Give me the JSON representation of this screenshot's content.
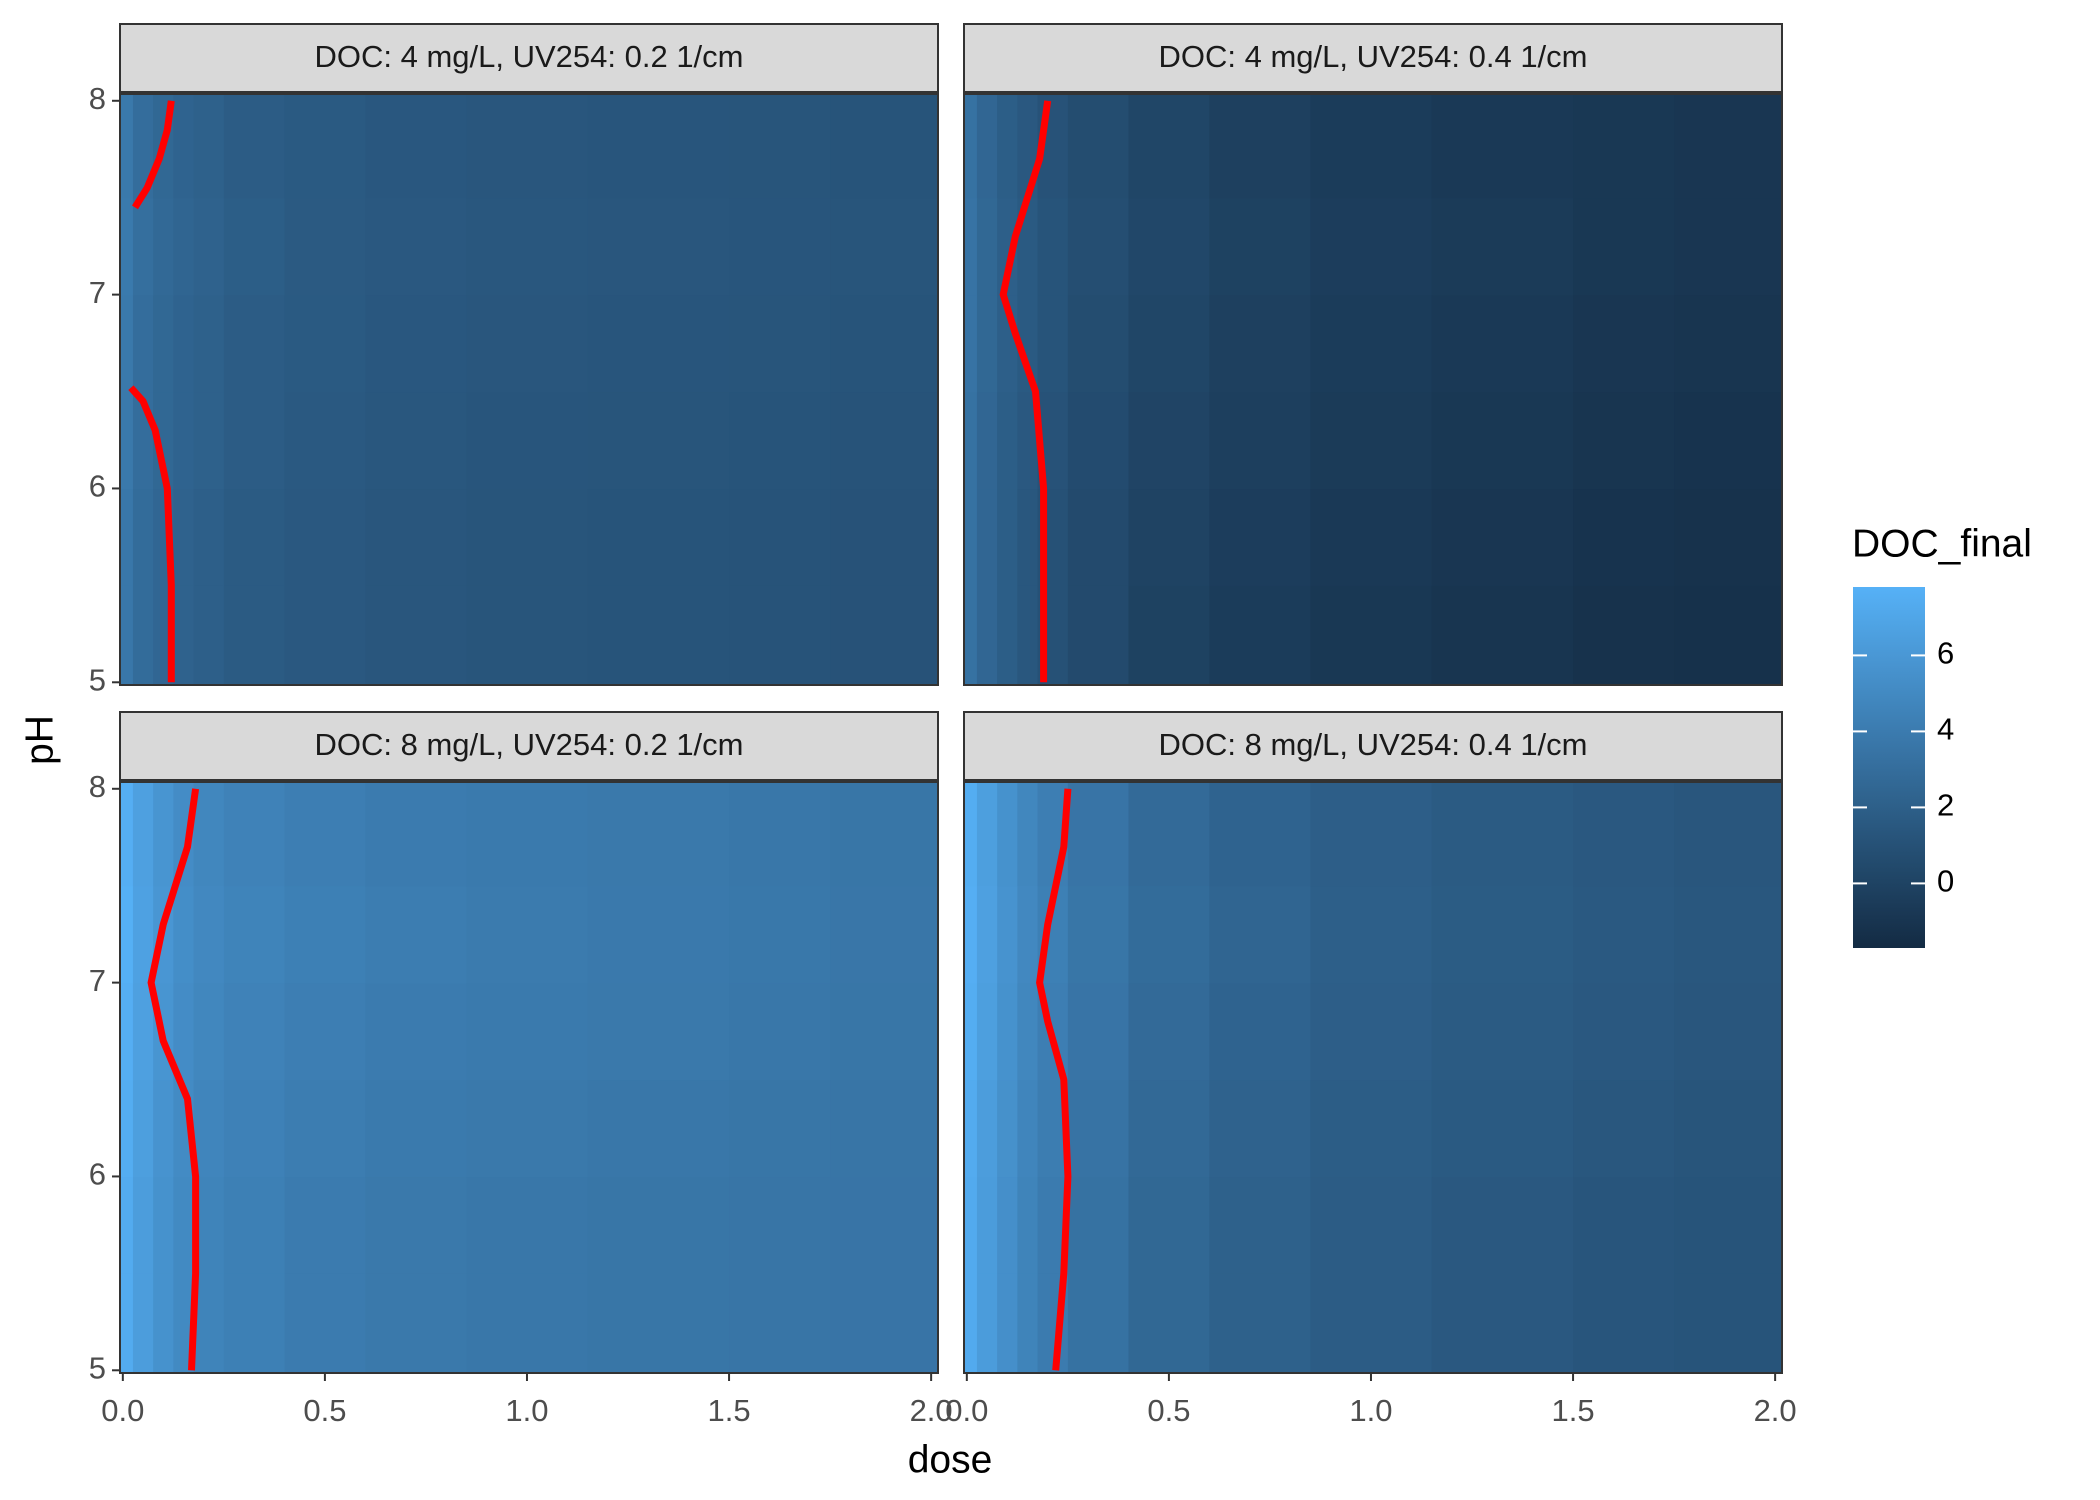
{
  "chart_data": {
    "type": "heatmap",
    "x_label": "dose",
    "y_label": "pH",
    "legend_title": "DOC_final",
    "xlim": [
      -0.007,
      2.017
    ],
    "ylim": [
      4.986,
      8.035
    ],
    "xticks": [
      {
        "value": 0,
        "label": "0.0"
      },
      {
        "value": 0.5,
        "label": "0.5"
      },
      {
        "value": 1,
        "label": "1.0"
      },
      {
        "value": 1.5,
        "label": "1.5"
      },
      {
        "value": 2,
        "label": "2.0"
      }
    ],
    "yticks": [
      5,
      6,
      7,
      8
    ],
    "zlim": [
      -1.7,
      7.8
    ],
    "zticks": [
      0,
      2,
      4,
      6
    ],
    "color_low": "#132B43",
    "color_high": "#56B1F7",
    "contour_color": "#FF0000",
    "xbins": [
      -0.025,
      0.025,
      0.075,
      0.125,
      0.175,
      0.25,
      0.4,
      0.6,
      0.85,
      1.15,
      1.5,
      1.75,
      2.025
    ],
    "ybins": [
      4.9,
      5.5,
      6,
      6.5,
      7,
      7.5,
      8.1
    ],
    "panels": [
      {
        "title": "DOC: 4 mg/L, UV254: 0.2 1/cm",
        "z": [
          [
            3.7,
            2.9,
            2.5,
            2.2,
            2.0,
            1.7,
            1.5,
            1.35,
            1.25,
            1.2,
            1.15,
            1.1
          ],
          [
            3.7,
            2.9,
            2.5,
            2.2,
            2.0,
            1.7,
            1.5,
            1.35,
            1.25,
            1.2,
            1.15,
            1.1
          ],
          [
            3.8,
            3.0,
            2.6,
            2.3,
            2.1,
            1.8,
            1.55,
            1.4,
            1.3,
            1.25,
            1.2,
            1.15
          ],
          [
            3.8,
            3.0,
            2.6,
            2.3,
            2.1,
            1.8,
            1.6,
            1.45,
            1.35,
            1.3,
            1.25,
            1.2
          ],
          [
            3.9,
            3.1,
            2.7,
            2.4,
            2.2,
            1.9,
            1.65,
            1.5,
            1.4,
            1.35,
            1.3,
            1.25
          ],
          [
            3.8,
            3.0,
            2.6,
            2.3,
            2.1,
            1.8,
            1.6,
            1.45,
            1.35,
            1.3,
            1.25,
            1.2
          ]
        ],
        "contour": {
          "x": [
            0.12,
            0.12,
            0.11,
            0.08,
            0.05,
            0.02,
            null,
            0.03,
            0.06,
            0.09,
            0.11,
            0.12
          ],
          "y": [
            5,
            5.5,
            6,
            6.3,
            6.45,
            6.52,
            null,
            7.45,
            7.55,
            7.7,
            7.85,
            8
          ]
        }
      },
      {
        "title": "DOC: 4 mg/L, UV254: 0.4 1/cm",
        "z": [
          [
            3.3,
            2.5,
            1.9,
            1.4,
            1.0,
            0.5,
            -0.1,
            -0.5,
            -0.8,
            -1.0,
            -1.2,
            -1.3
          ],
          [
            3.3,
            2.5,
            1.9,
            1.4,
            1.0,
            0.5,
            0.0,
            -0.4,
            -0.7,
            -0.9,
            -1.1,
            -1.2
          ],
          [
            3.3,
            2.5,
            1.9,
            1.5,
            1.1,
            0.6,
            0.1,
            -0.3,
            -0.6,
            -0.8,
            -1.0,
            -1.1
          ],
          [
            3.4,
            2.6,
            2.0,
            1.6,
            1.2,
            0.7,
            0.2,
            -0.2,
            -0.5,
            -0.7,
            -0.9,
            -1.0
          ],
          [
            3.4,
            2.6,
            2.0,
            1.6,
            1.2,
            0.8,
            0.3,
            -0.1,
            -0.4,
            -0.6,
            -0.8,
            -0.9
          ],
          [
            3.3,
            2.5,
            1.9,
            1.5,
            1.1,
            0.7,
            0.2,
            -0.2,
            -0.5,
            -0.7,
            -0.8,
            -0.9
          ]
        ],
        "contour": {
          "x": [
            0.19,
            0.19,
            0.19,
            0.17,
            0.12,
            0.09,
            0.12,
            0.18,
            0.2
          ],
          "y": [
            5,
            5.5,
            6,
            6.5,
            6.8,
            7,
            7.3,
            7.7,
            8
          ]
        }
      },
      {
        "title": "DOC: 8 mg/L, UV254: 0.2 1/cm",
        "z": [
          [
            7.4,
            6.4,
            5.6,
            5.0,
            4.6,
            4.3,
            4.0,
            3.8,
            3.7,
            3.6,
            3.55,
            3.5
          ],
          [
            7.4,
            6.4,
            5.6,
            5.0,
            4.6,
            4.3,
            4.0,
            3.8,
            3.7,
            3.6,
            3.55,
            3.5
          ],
          [
            7.5,
            6.5,
            5.7,
            5.1,
            4.7,
            4.4,
            4.1,
            3.9,
            3.8,
            3.7,
            3.6,
            3.55
          ],
          [
            7.6,
            6.6,
            5.8,
            5.2,
            4.8,
            4.5,
            4.2,
            4.0,
            3.9,
            3.8,
            3.7,
            3.6
          ],
          [
            7.7,
            6.7,
            5.9,
            5.3,
            4.9,
            4.6,
            4.3,
            4.1,
            3.95,
            3.85,
            3.75,
            3.65
          ],
          [
            7.6,
            6.6,
            5.8,
            5.2,
            4.8,
            4.5,
            4.2,
            4.0,
            3.9,
            3.8,
            3.7,
            3.6
          ]
        ],
        "contour": {
          "x": [
            0.17,
            0.18,
            0.18,
            0.16,
            0.1,
            0.07,
            0.1,
            0.16,
            0.18
          ],
          "y": [
            5,
            5.5,
            6,
            6.4,
            6.7,
            7,
            7.3,
            7.7,
            8
          ]
        }
      },
      {
        "title": "DOC: 8 mg/L, UV254: 0.4 1/cm",
        "z": [
          [
            7.3,
            6.3,
            5.4,
            4.6,
            4.0,
            3.3,
            2.6,
            2.1,
            1.8,
            1.5,
            1.3,
            1.2
          ],
          [
            7.3,
            6.3,
            5.4,
            4.6,
            4.0,
            3.3,
            2.6,
            2.1,
            1.8,
            1.5,
            1.3,
            1.2
          ],
          [
            7.4,
            6.4,
            5.5,
            4.7,
            4.1,
            3.4,
            2.7,
            2.2,
            1.85,
            1.6,
            1.4,
            1.25
          ],
          [
            7.5,
            6.5,
            5.6,
            4.8,
            4.2,
            3.5,
            2.8,
            2.3,
            1.95,
            1.7,
            1.5,
            1.35
          ],
          [
            7.6,
            6.6,
            5.7,
            4.9,
            4.3,
            3.6,
            2.9,
            2.4,
            2.0,
            1.75,
            1.55,
            1.4
          ],
          [
            7.5,
            6.5,
            5.6,
            4.8,
            4.2,
            3.5,
            2.8,
            2.3,
            1.95,
            1.7,
            1.5,
            1.35
          ]
        ],
        "contour": {
          "x": [
            0.22,
            0.24,
            0.25,
            0.24,
            0.2,
            0.18,
            0.2,
            0.24,
            0.25
          ],
          "y": [
            5,
            5.5,
            6,
            6.5,
            6.8,
            7,
            7.3,
            7.7,
            8
          ]
        }
      }
    ]
  }
}
